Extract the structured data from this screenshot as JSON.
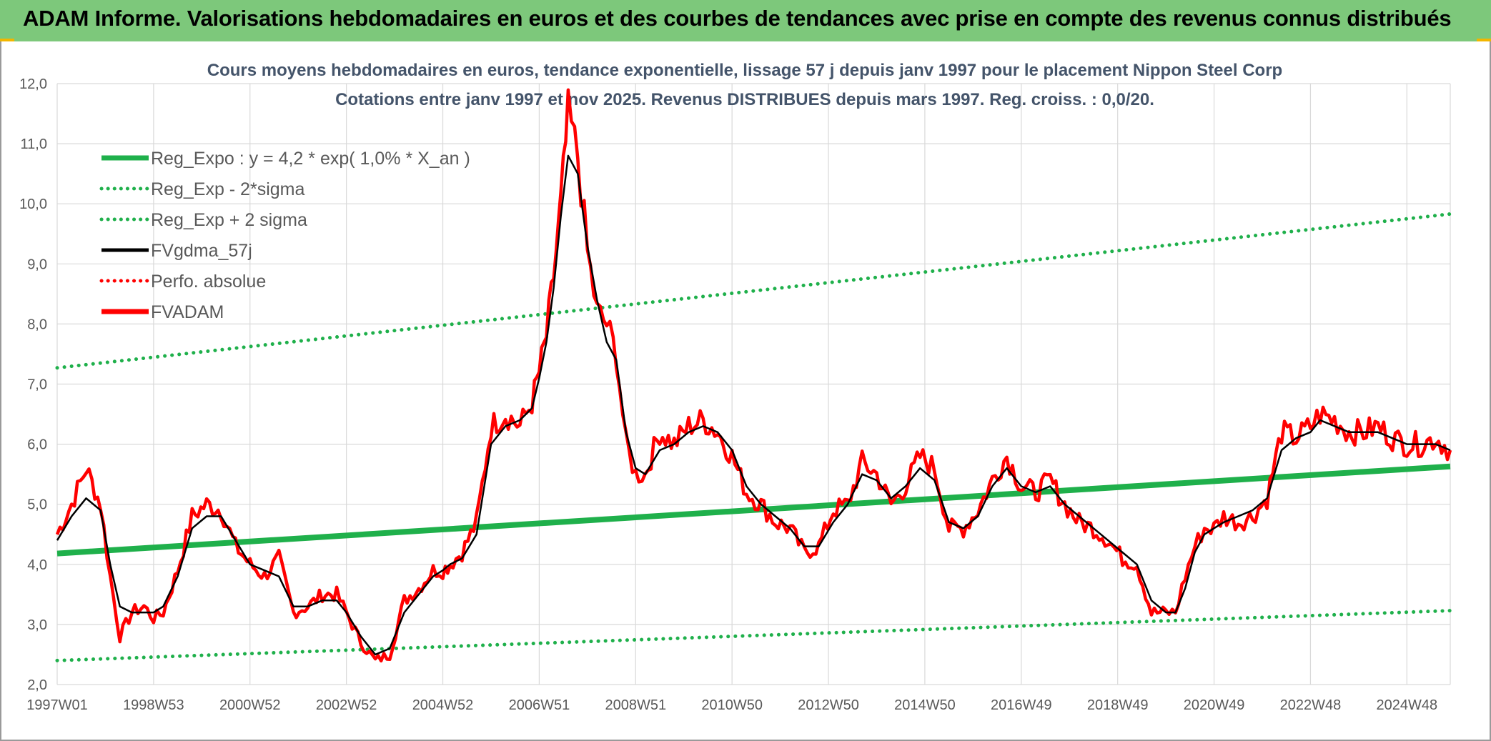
{
  "banner": {
    "title": "ADAM Informe. Valorisations hebdomadaires en euros et des courbes de tendances avec prise en compte des revenus connus distribués"
  },
  "colors": {
    "banner": "#7dc87b",
    "reg_line": "#1fb04b",
    "dotted_band": "#1fb04b",
    "smooth": "#000000",
    "price": "#ff0000",
    "grid": "#d9d9d9"
  },
  "chart_data": {
    "type": "line",
    "title": "Cours moyens hebdomadaires en euros, tendance exponentielle, lissage 57 j depuis janv 1997 pour le placement Nippon Steel Corp",
    "subtitle": "Cotations entre janv 1997 et nov 2025. Revenus DISTRIBUES depuis mars 1997. Reg. croiss. : 0,0/20.",
    "ylim": [
      2.0,
      12.0
    ],
    "y_ticks": [
      "2,0",
      "3,0",
      "4,0",
      "5,0",
      "6,0",
      "7,0",
      "8,0",
      "9,0",
      "10,0",
      "11,0",
      "12,0"
    ],
    "x_range": [
      1997.0,
      2025.9
    ],
    "x_ticks": [
      {
        "label": "1997W01",
        "x": 1997.0
      },
      {
        "label": "1998W53",
        "x": 1999.0
      },
      {
        "label": "2000W52",
        "x": 2001.0
      },
      {
        "label": "2002W52",
        "x": 2003.0
      },
      {
        "label": "2004W52",
        "x": 2005.0
      },
      {
        "label": "2006W51",
        "x": 2007.0
      },
      {
        "label": "2008W51",
        "x": 2009.0
      },
      {
        "label": "2010W50",
        "x": 2011.0
      },
      {
        "label": "2012W50",
        "x": 2013.0
      },
      {
        "label": "2014W50",
        "x": 2015.0
      },
      {
        "label": "2016W49",
        "x": 2017.0
      },
      {
        "label": "2018W49",
        "x": 2019.0
      },
      {
        "label": "2020W49",
        "x": 2021.0
      },
      {
        "label": "2022W48",
        "x": 2023.0
      },
      {
        "label": "2024W48",
        "x": 2025.0
      }
    ],
    "legend": [
      {
        "key": "reg",
        "label": "Reg_Expo : y = 4,2 * exp( 1,0% *  X_an )",
        "style": "solid-thick",
        "color": "#1fb04b"
      },
      {
        "key": "low",
        "label": "Reg_Exp - 2*sigma",
        "style": "dotted",
        "color": "#1fb04b"
      },
      {
        "key": "high",
        "label": "Reg_Exp + 2 sigma",
        "style": "dotted",
        "color": "#1fb04b"
      },
      {
        "key": "smooth",
        "label": "FVgdma_57j",
        "style": "solid",
        "color": "#000000"
      },
      {
        "key": "perfo",
        "label": "Perfo. absolue",
        "style": "dotted",
        "color": "#ff0000"
      },
      {
        "key": "price",
        "label": "FVADAM",
        "style": "solid-thick",
        "color": "#ff0000"
      }
    ],
    "series": [
      {
        "name": "Reg_Expo",
        "x": [
          1997.0,
          2025.9
        ],
        "values": [
          4.18,
          5.63
        ]
      },
      {
        "name": "Reg_Exp - 2*sigma",
        "x": [
          1997.0,
          2025.9
        ],
        "values": [
          2.4,
          3.23
        ]
      },
      {
        "name": "Reg_Exp + 2 sigma",
        "x": [
          1997.0,
          2025.9
        ],
        "values": [
          7.27,
          9.83
        ]
      },
      {
        "name": "FVADAM",
        "x": [
          1997.0,
          1997.3,
          1997.6,
          1997.9,
          1998.1,
          1998.3,
          1998.55,
          1998.8,
          1999.0,
          1999.2,
          1999.5,
          1999.8,
          2000.1,
          2000.4,
          2000.7,
          2001.0,
          2001.3,
          2001.6,
          2001.9,
          2002.2,
          2002.5,
          2002.8,
          2003.0,
          2003.3,
          2003.6,
          2003.9,
          2004.2,
          2004.5,
          2004.8,
          2005.0,
          2005.15,
          2005.4,
          2005.7,
          2006.0,
          2006.3,
          2006.6,
          2006.85,
          2007.0,
          2007.15,
          2007.3,
          2007.45,
          2007.6,
          2007.8,
          2008.0,
          2008.2,
          2008.4,
          2008.6,
          2008.8,
          2009.0,
          2009.2,
          2009.5,
          2009.8,
          2010.1,
          2010.4,
          2010.7,
          2011.0,
          2011.3,
          2011.6,
          2011.9,
          2012.2,
          2012.5,
          2012.8,
          2013.1,
          2013.4,
          2013.7,
          2014.0,
          2014.3,
          2014.6,
          2014.9,
          2015.2,
          2015.5,
          2015.8,
          2016.1,
          2016.4,
          2016.7,
          2017.0,
          2017.3,
          2017.6,
          2017.9,
          2018.2,
          2018.5,
          2018.8,
          2019.1,
          2019.4,
          2019.7,
          2020.0,
          2020.2,
          2020.4,
          2020.6,
          2020.8,
          2021.0,
          2021.2,
          2021.5,
          2021.8,
          2022.1,
          2022.4,
          2022.7,
          2023.0,
          2023.2,
          2023.5,
          2023.8,
          2024.1,
          2024.4,
          2024.7,
          2025.0,
          2025.3,
          2025.6,
          2025.9
        ],
        "values": [
          4.5,
          5.0,
          5.6,
          5.0,
          3.8,
          2.8,
          3.2,
          3.3,
          3.1,
          3.2,
          3.9,
          4.8,
          5.0,
          4.9,
          4.3,
          4.0,
          3.8,
          4.1,
          3.2,
          3.3,
          3.5,
          3.5,
          3.2,
          2.7,
          2.4,
          2.5,
          3.4,
          3.6,
          3.9,
          3.9,
          4.0,
          4.2,
          4.7,
          6.3,
          6.5,
          6.3,
          6.7,
          7.2,
          7.8,
          8.8,
          10.0,
          11.5,
          10.8,
          9.2,
          8.2,
          8.0,
          7.5,
          6.0,
          5.5,
          5.5,
          6.2,
          6.0,
          6.3,
          6.4,
          6.2,
          5.8,
          5.2,
          5.0,
          4.7,
          4.6,
          4.2,
          4.3,
          4.9,
          5.0,
          5.7,
          5.5,
          5.0,
          5.3,
          5.8,
          5.6,
          4.6,
          4.6,
          4.9,
          5.4,
          5.8,
          5.3,
          5.2,
          5.4,
          5.0,
          4.7,
          4.6,
          4.4,
          4.1,
          4.0,
          3.2,
          3.2,
          3.2,
          3.8,
          4.3,
          4.6,
          4.6,
          4.8,
          4.7,
          4.8,
          5.1,
          6.2,
          6.1,
          6.3,
          6.5,
          6.4,
          6.2,
          6.2,
          6.3,
          6.1,
          6.0,
          6.0,
          6.1,
          5.9
        ]
      },
      {
        "name": "FVgdma_57j",
        "x": [
          1997.0,
          1997.3,
          1997.6,
          1997.9,
          1998.1,
          1998.3,
          1998.55,
          1998.8,
          1999.0,
          1999.2,
          1999.5,
          1999.8,
          2000.1,
          2000.4,
          2000.7,
          2001.0,
          2001.3,
          2001.6,
          2001.9,
          2002.2,
          2002.5,
          2002.8,
          2003.0,
          2003.3,
          2003.6,
          2003.9,
          2004.2,
          2004.5,
          2004.8,
          2005.0,
          2005.15,
          2005.4,
          2005.7,
          2006.0,
          2006.3,
          2006.6,
          2006.85,
          2007.0,
          2007.15,
          2007.3,
          2007.45,
          2007.6,
          2007.8,
          2008.0,
          2008.2,
          2008.4,
          2008.6,
          2008.8,
          2009.0,
          2009.2,
          2009.5,
          2009.8,
          2010.1,
          2010.4,
          2010.7,
          2011.0,
          2011.3,
          2011.6,
          2011.9,
          2012.2,
          2012.5,
          2012.8,
          2013.1,
          2013.4,
          2013.7,
          2014.0,
          2014.3,
          2014.6,
          2014.9,
          2015.2,
          2015.5,
          2015.8,
          2016.1,
          2016.4,
          2016.7,
          2017.0,
          2017.3,
          2017.6,
          2017.9,
          2018.2,
          2018.5,
          2018.8,
          2019.1,
          2019.4,
          2019.7,
          2020.0,
          2020.2,
          2020.4,
          2020.6,
          2020.8,
          2021.0,
          2021.2,
          2021.5,
          2021.8,
          2022.1,
          2022.4,
          2022.7,
          2023.0,
          2023.2,
          2023.5,
          2023.8,
          2024.1,
          2024.4,
          2024.7,
          2025.0,
          2025.3,
          2025.6,
          2025.9
        ],
        "values": [
          4.4,
          4.8,
          5.1,
          4.9,
          4.0,
          3.3,
          3.2,
          3.2,
          3.2,
          3.3,
          3.8,
          4.6,
          4.8,
          4.8,
          4.4,
          4.0,
          3.9,
          3.8,
          3.3,
          3.3,
          3.4,
          3.4,
          3.2,
          2.8,
          2.5,
          2.6,
          3.2,
          3.5,
          3.8,
          3.9,
          4.0,
          4.1,
          4.5,
          6.0,
          6.3,
          6.4,
          6.6,
          7.1,
          7.7,
          8.6,
          9.8,
          10.8,
          10.5,
          9.3,
          8.4,
          7.7,
          7.4,
          6.2,
          5.6,
          5.5,
          5.9,
          6.0,
          6.2,
          6.3,
          6.2,
          5.9,
          5.3,
          5.0,
          4.8,
          4.6,
          4.3,
          4.3,
          4.7,
          5.0,
          5.5,
          5.4,
          5.1,
          5.3,
          5.6,
          5.4,
          4.7,
          4.6,
          4.8,
          5.3,
          5.6,
          5.3,
          5.2,
          5.3,
          5.0,
          4.8,
          4.6,
          4.4,
          4.2,
          4.0,
          3.4,
          3.2,
          3.2,
          3.6,
          4.2,
          4.5,
          4.6,
          4.7,
          4.8,
          4.9,
          5.1,
          5.9,
          6.1,
          6.2,
          6.4,
          6.3,
          6.2,
          6.2,
          6.2,
          6.1,
          6.0,
          6.0,
          6.0,
          5.9
        ]
      }
    ]
  }
}
